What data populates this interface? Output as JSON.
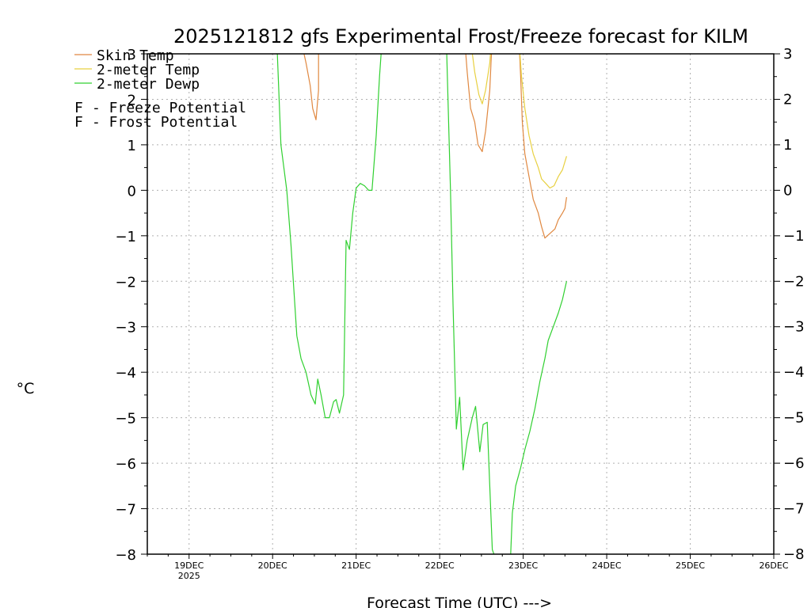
{
  "chart_data": {
    "type": "line",
    "title": "2025121812 gfs Experimental Frost/Freeze forecast for KILM",
    "xlabel": "Forecast Time (UTC) --->",
    "ylabel": "°C",
    "ylim": [
      -8,
      3
    ],
    "xlim": [
      18.5,
      26.0
    ],
    "yticks": [
      -8,
      -7,
      -6,
      -5,
      -4,
      -3,
      -2,
      -1,
      0,
      1,
      2,
      3
    ],
    "ytick_labels": [
      "−8",
      "−7",
      "−6",
      "−5",
      "−4",
      "−3",
      "−2",
      "−1",
      "0",
      "1",
      "2",
      "3"
    ],
    "xticks": [
      {
        "value": 19,
        "label": "19DEC",
        "sublabel": "2025"
      },
      {
        "value": 20,
        "label": "20DEC",
        "sublabel": ""
      },
      {
        "value": 21,
        "label": "21DEC",
        "sublabel": ""
      },
      {
        "value": 22,
        "label": "22DEC",
        "sublabel": ""
      },
      {
        "value": 23,
        "label": "23DEC",
        "sublabel": ""
      },
      {
        "value": 24,
        "label": "24DEC",
        "sublabel": ""
      },
      {
        "value": 25,
        "label": "25DEC",
        "sublabel": ""
      },
      {
        "value": 26,
        "label": "26DEC",
        "sublabel": ""
      }
    ],
    "grid": true,
    "legend": [
      {
        "label": "Skin Temp",
        "color": "#e08840"
      },
      {
        "label": "2-meter Temp",
        "color": "#e8d040"
      },
      {
        "label": "2-meter Dewp",
        "color": "#30d030"
      }
    ],
    "potential_legend": [
      {
        "marker": "F",
        "text": "- Freeze Potential",
        "color": "#c040a0"
      },
      {
        "marker": "F",
        "text": "- Frost Potential",
        "color": "#5050e0"
      }
    ],
    "series": [
      {
        "name": "Skin Temp",
        "color": "#e08840",
        "segments": [
          [
            [
              20.34,
              3.3
            ],
            [
              20.4,
              2.8
            ],
            [
              20.45,
              2.3
            ],
            [
              20.48,
              1.8
            ],
            [
              20.52,
              1.55
            ],
            [
              20.55,
              2.2
            ],
            [
              20.55,
              3.3
            ]
          ],
          [
            [
              22.3,
              3.3
            ],
            [
              22.33,
              2.6
            ],
            [
              22.37,
              1.8
            ],
            [
              22.42,
              1.5
            ],
            [
              22.46,
              1.0
            ],
            [
              22.51,
              0.85
            ],
            [
              22.55,
              1.3
            ],
            [
              22.6,
              2.2
            ],
            [
              22.62,
              3.0
            ],
            [
              22.62,
              3.3
            ]
          ],
          [
            [
              22.95,
              3.3
            ],
            [
              22.97,
              2.5
            ],
            [
              22.99,
              1.5
            ],
            [
              23.02,
              0.8
            ],
            [
              23.07,
              0.3
            ],
            [
              23.12,
              -0.2
            ],
            [
              23.18,
              -0.5
            ],
            [
              23.22,
              -0.8
            ],
            [
              23.26,
              -1.05
            ],
            [
              23.32,
              -0.95
            ],
            [
              23.38,
              -0.85
            ],
            [
              23.42,
              -0.65
            ],
            [
              23.47,
              -0.5
            ],
            [
              23.5,
              -0.4
            ],
            [
              23.52,
              -0.15
            ]
          ]
        ]
      },
      {
        "name": "2-meter Temp",
        "color": "#e8d040",
        "segments": [
          [
            [
              22.37,
              3.3
            ],
            [
              22.42,
              2.6
            ],
            [
              22.47,
              2.1
            ],
            [
              22.51,
              1.9
            ],
            [
              22.55,
              2.2
            ],
            [
              22.6,
              2.8
            ],
            [
              22.62,
              3.3
            ]
          ],
          [
            [
              22.95,
              3.3
            ],
            [
              22.98,
              2.5
            ],
            [
              23.02,
              1.8
            ],
            [
              23.07,
              1.2
            ],
            [
              23.12,
              0.8
            ],
            [
              23.18,
              0.5
            ],
            [
              23.22,
              0.25
            ],
            [
              23.27,
              0.15
            ],
            [
              23.32,
              0.05
            ],
            [
              23.37,
              0.1
            ],
            [
              23.42,
              0.3
            ],
            [
              23.47,
              0.45
            ],
            [
              23.52,
              0.75
            ]
          ]
        ]
      },
      {
        "name": "2-meter Dewp",
        "color": "#30d030",
        "segments": [
          [
            [
              20.05,
              3.3
            ],
            [
              20.1,
              1.0
            ],
            [
              20.17,
              0.0
            ],
            [
              20.22,
              -1.2
            ],
            [
              20.29,
              -3.2
            ],
            [
              20.34,
              -3.7
            ],
            [
              20.4,
              -4.0
            ],
            [
              20.46,
              -4.5
            ],
            [
              20.51,
              -4.7
            ],
            [
              20.54,
              -4.15
            ],
            [
              20.58,
              -4.5
            ],
            [
              20.63,
              -5.0
            ],
            [
              20.68,
              -5.0
            ],
            [
              20.73,
              -4.65
            ],
            [
              20.76,
              -4.6
            ],
            [
              20.8,
              -4.9
            ],
            [
              20.85,
              -4.5
            ],
            [
              20.88,
              -1.1
            ],
            [
              20.92,
              -1.3
            ],
            [
              20.96,
              -0.5
            ],
            [
              21.0,
              0.05
            ],
            [
              21.05,
              0.15
            ],
            [
              21.1,
              0.1
            ],
            [
              21.15,
              0.0
            ],
            [
              21.19,
              0.0
            ],
            [
              21.24,
              1.2
            ],
            [
              21.28,
              2.5
            ],
            [
              21.31,
              3.3
            ]
          ],
          [
            [
              22.08,
              3.3
            ],
            [
              22.13,
              0.0
            ],
            [
              22.16,
              -2.5
            ],
            [
              22.2,
              -5.25
            ],
            [
              22.24,
              -4.55
            ],
            [
              22.28,
              -6.15
            ],
            [
              22.33,
              -5.5
            ],
            [
              22.39,
              -5.0
            ],
            [
              22.43,
              -4.75
            ],
            [
              22.48,
              -5.75
            ],
            [
              22.52,
              -5.15
            ],
            [
              22.57,
              -5.1
            ],
            [
              22.63,
              -7.9
            ],
            [
              22.65,
              -8.0
            ]
          ],
          [
            [
              22.85,
              -8.0
            ],
            [
              22.87,
              -7.1
            ],
            [
              22.91,
              -6.5
            ],
            [
              22.97,
              -6.1
            ],
            [
              23.02,
              -5.7
            ],
            [
              23.08,
              -5.3
            ],
            [
              23.14,
              -4.8
            ],
            [
              23.2,
              -4.2
            ],
            [
              23.26,
              -3.7
            ],
            [
              23.3,
              -3.3
            ],
            [
              23.36,
              -3.0
            ],
            [
              23.42,
              -2.7
            ],
            [
              23.47,
              -2.4
            ],
            [
              23.52,
              -2.0
            ]
          ]
        ]
      }
    ]
  }
}
